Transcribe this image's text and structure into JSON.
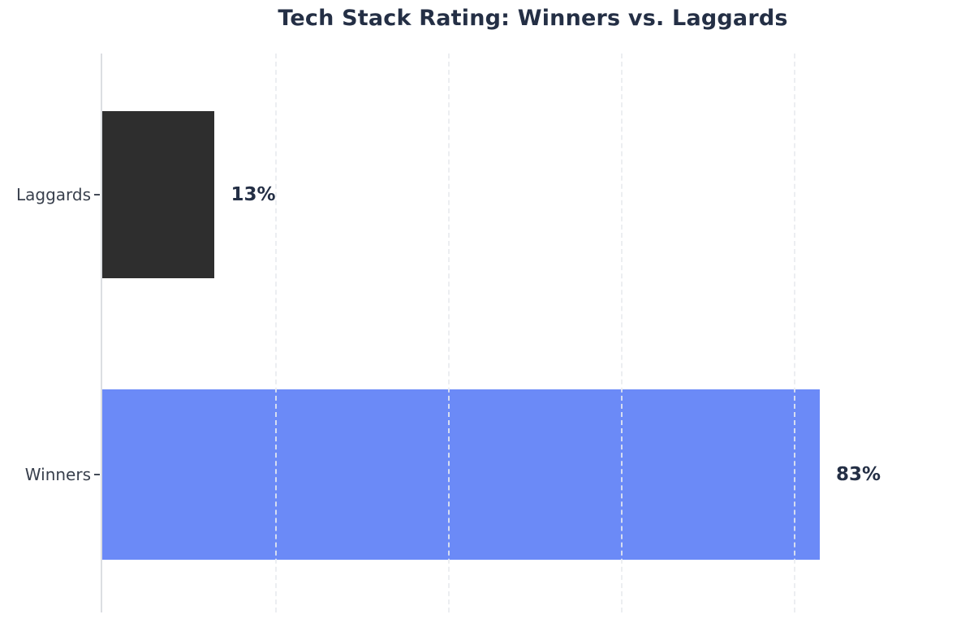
{
  "chart_data": {
    "type": "bar",
    "orientation": "horizontal",
    "title": "Tech Stack Rating: Winners vs. Laggards",
    "categories": [
      "Laggards",
      "Winners"
    ],
    "values": [
      13,
      83
    ],
    "value_labels": [
      "13%",
      "83%"
    ],
    "bar_colors": [
      "#2e2e2e",
      "#6b8af7"
    ],
    "xlim": [
      0,
      100
    ],
    "gridline_ticks": [
      20,
      40,
      60,
      80
    ],
    "grid": "vertical-dashed-light",
    "legend": "none",
    "xlabel": "",
    "ylabel": ""
  },
  "colors": {
    "title_text": "#242f45",
    "tick_label_text": "#39404d",
    "axis_line": "#dcdee2",
    "gridline": "#e9ecef",
    "background": "#ffffff"
  }
}
